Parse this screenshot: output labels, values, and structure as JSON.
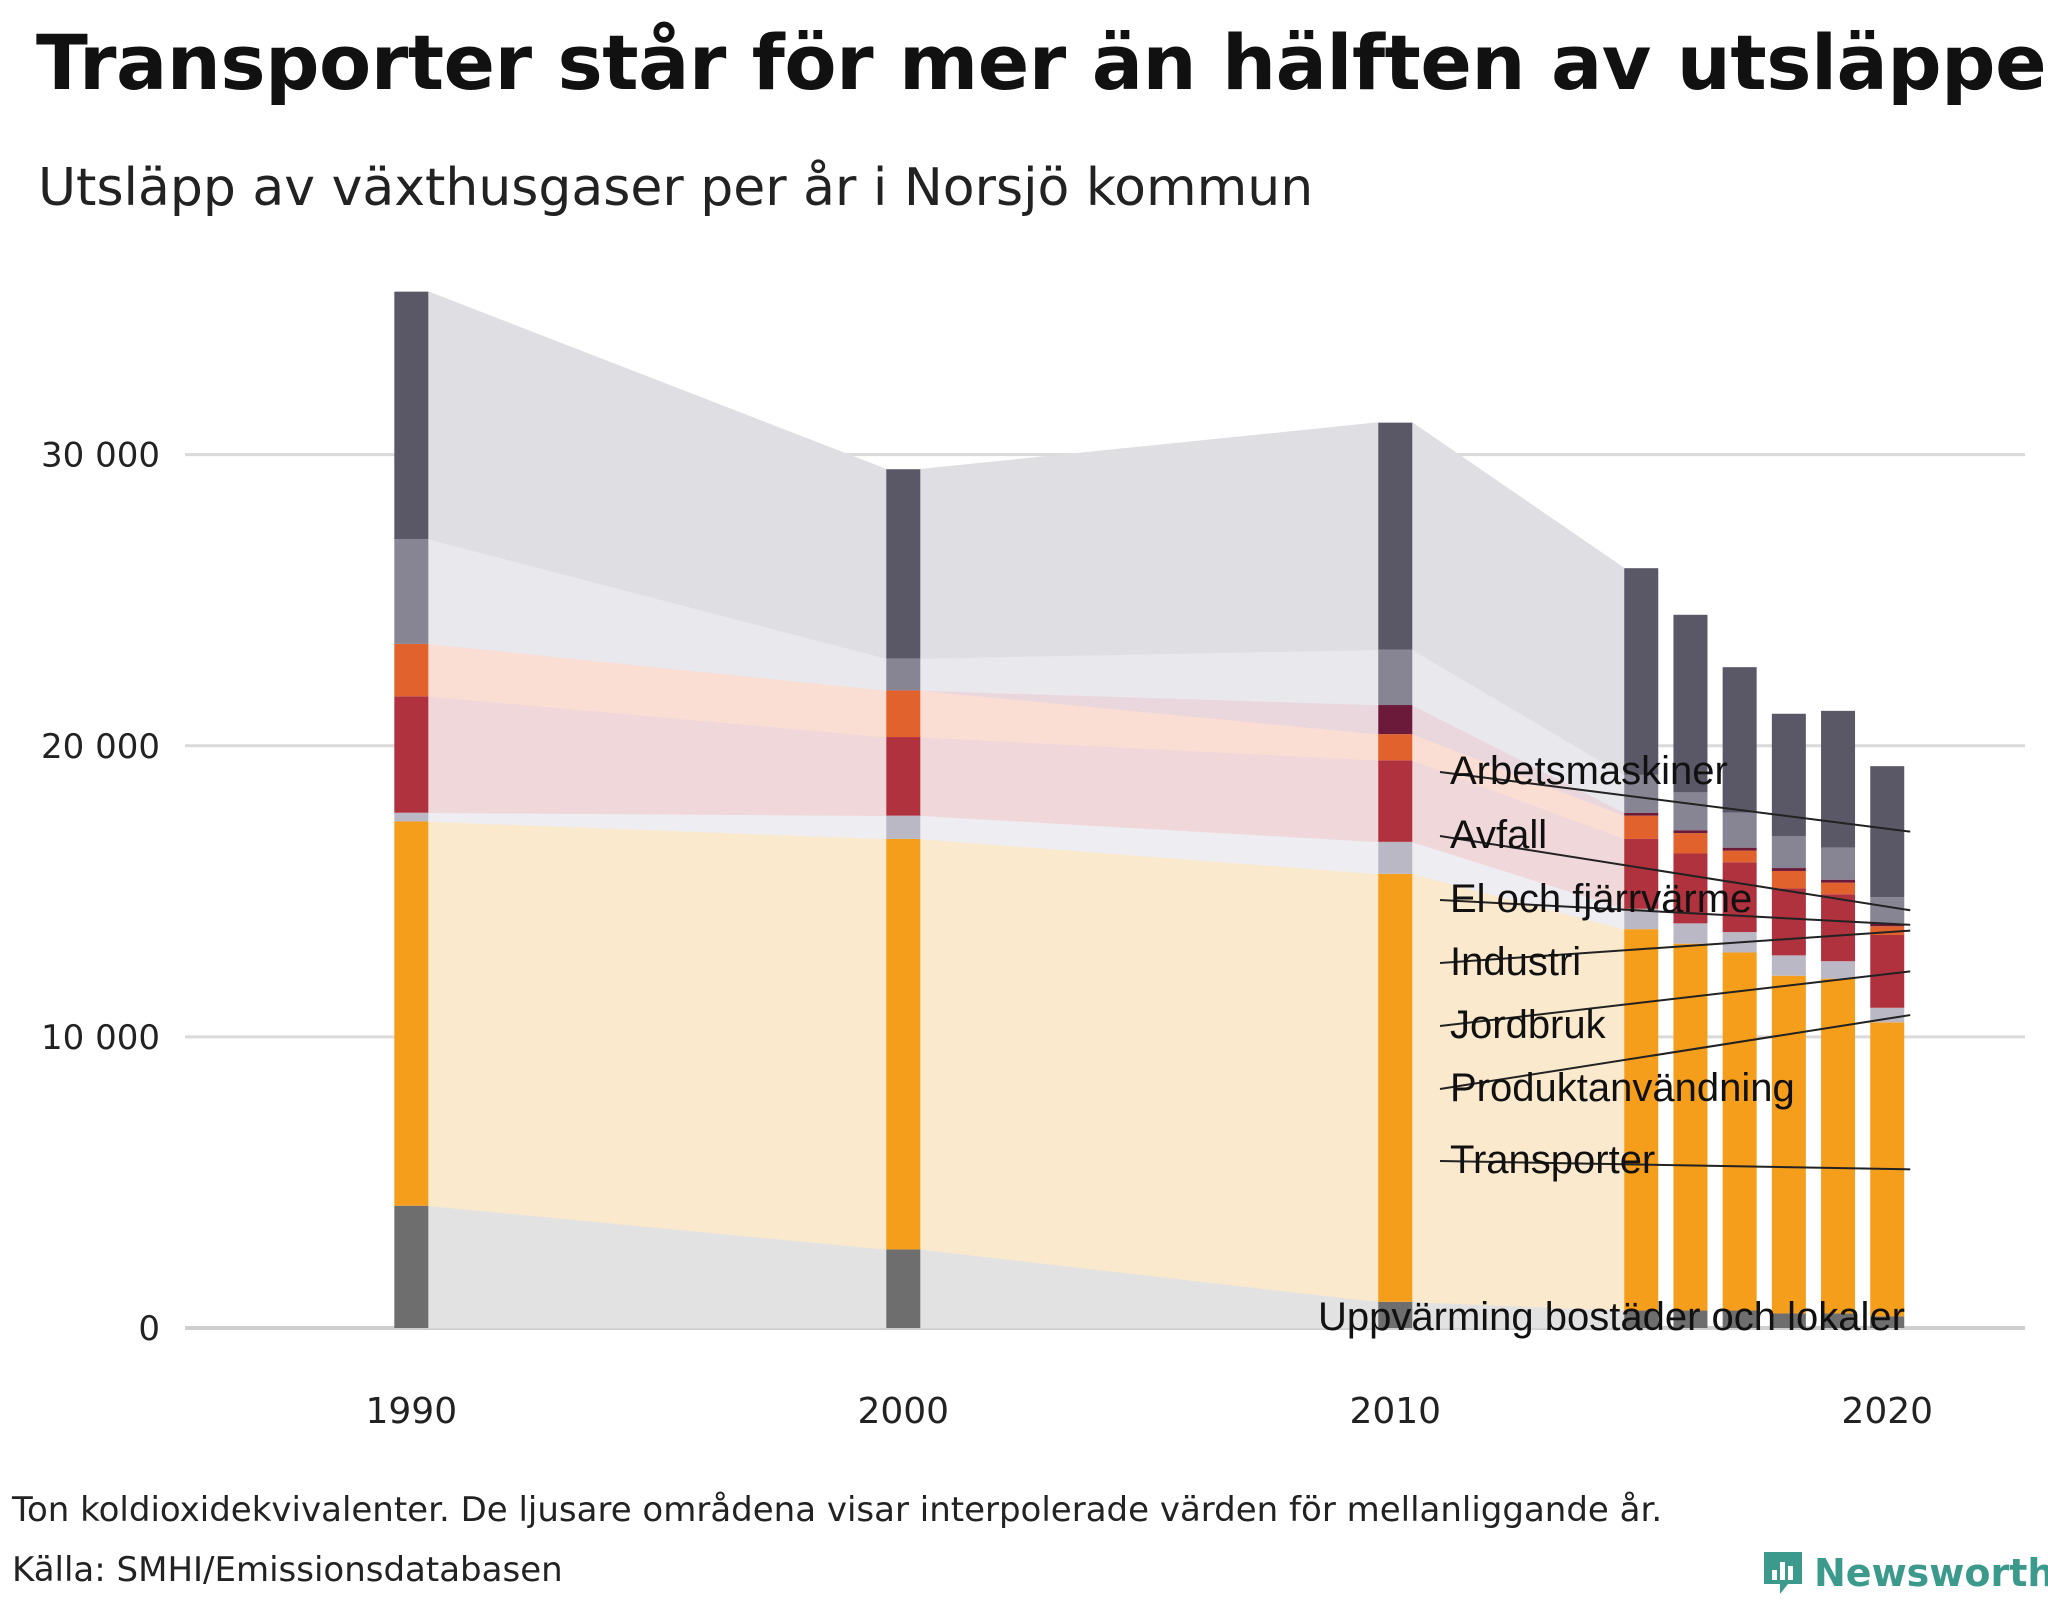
{
  "title": "Transporter står för mer än hälften av utsläppen",
  "subtitle": "Utsläpp av växthusgaser per år i Norsjö kommun",
  "note": "Ton koldioxidekvivalenter. De ljusare områdena visar interpolerade värden för mellanliggande år.",
  "source": "Källa: SMHI/Emissionsdatabasen",
  "brand": "Newsworthy",
  "chart_data": {
    "type": "bar",
    "stacked": true,
    "title": "Transporter står för mer än hälften av utsläppen",
    "subtitle": "Utsläpp av växthusgaser per år i Norsjö kommun",
    "unit": "Ton koldioxidekvivalenter",
    "ylim": [
      0,
      36000
    ],
    "yticks": [
      0,
      10000,
      20000,
      30000
    ],
    "ytick_labels": [
      "0",
      "10 000",
      "20 000",
      "30 000"
    ],
    "xlim": [
      1985.4,
      2022.8
    ],
    "xticks": [
      1990,
      2000,
      2010,
      2020
    ],
    "xtick_labels": [
      "1990",
      "2000",
      "2010",
      "2020"
    ],
    "grid": true,
    "x": [
      1990,
      2000,
      2010,
      2015,
      2016,
      2017,
      2018,
      2019,
      2020
    ],
    "series": [
      {
        "name": "Uppvärming bostäder och lokaler",
        "color": "#6e6e6e",
        "band": "#e2e2e2",
        "values": [
          4200,
          2700,
          900,
          600,
          600,
          600,
          500,
          500,
          400
        ]
      },
      {
        "name": "Transporter",
        "color": "#f59e1b",
        "band": "#fbe9cd",
        "values": [
          13200,
          14100,
          14700,
          13100,
          12600,
          12300,
          11600,
          11500,
          10100
        ]
      },
      {
        "name": "Produktanvändning",
        "color": "#bbb8c6",
        "band": "#eeedf2",
        "values": [
          300,
          800,
          1100,
          700,
          700,
          700,
          700,
          600,
          500
        ]
      },
      {
        "name": "Jordbruk",
        "color": "#b0323e",
        "band": "#efd7da",
        "values": [
          4000,
          2700,
          2800,
          2400,
          2400,
          2400,
          2300,
          2300,
          2500
        ]
      },
      {
        "name": "Industri",
        "color": "#e2622e",
        "band": "#fbded3",
        "values": [
          1800,
          1600,
          900,
          800,
          700,
          400,
          600,
          400,
          300
        ]
      },
      {
        "name": "El och fjärrvärme",
        "color": "#6c1a3a",
        "band": "#ead6dd",
        "values": [
          0,
          0,
          1000,
          100,
          100,
          100,
          100,
          100,
          100
        ]
      },
      {
        "name": "Avfall",
        "color": "#878493",
        "band": "#e9e8ec",
        "values": [
          3600,
          1100,
          1900,
          1300,
          1300,
          1200,
          1100,
          1100,
          900
        ]
      },
      {
        "name": "Arbetsmaskiner",
        "color": "#5a5766",
        "band": "#dfdee2",
        "values": [
          8500,
          6500,
          7800,
          7100,
          6100,
          5000,
          4200,
          4700,
          4500
        ]
      }
    ],
    "labels": [
      {
        "text": "Arbetsmaskiner",
        "series": "Arbetsmaskiner"
      },
      {
        "text": "Avfall",
        "series": "Avfall"
      },
      {
        "text": "El och fjärrvärme",
        "series": "El och fjärrvärme"
      },
      {
        "text": "Industri",
        "series": "Industri"
      },
      {
        "text": "Jordbruk",
        "series": "Jordbruk"
      },
      {
        "text": "Produktanvändning",
        "series": "Produktanvändning"
      },
      {
        "text": "Transporter",
        "series": "Transporter"
      },
      {
        "text": "Uppvärming bostäder och lokaler",
        "series": "Uppvärming bostäder och lokaler"
      }
    ]
  }
}
